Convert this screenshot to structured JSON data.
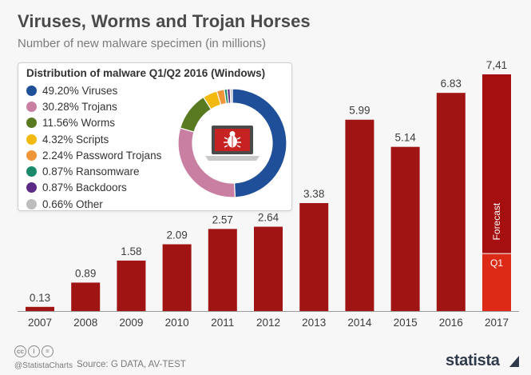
{
  "title": "Viruses, Worms and Trojan Horses",
  "subtitle": "Number of new malware specimen (in millions)",
  "chart_data": [
    {
      "type": "bar",
      "categories": [
        "2007",
        "2008",
        "2009",
        "2010",
        "2011",
        "2012",
        "2013",
        "2014",
        "2015",
        "2016",
        "2017"
      ],
      "values": [
        0.13,
        0.89,
        1.58,
        2.09,
        2.57,
        2.64,
        3.38,
        5.99,
        5.14,
        6.83,
        7.41
      ],
      "value_labels": [
        "0.13",
        "0.89",
        "1.58",
        "2.09",
        "2.57",
        "2.64",
        "3.38",
        "5.99",
        "5.14",
        "6.83",
        "7,41"
      ],
      "stacked_last": {
        "q1_value": 1.8,
        "q1_label": "Q1",
        "forecast_label": "Forecast"
      },
      "ylim": [
        0,
        7.41
      ],
      "colors": {
        "bar": "#a11414",
        "forecast": "#a50f0f",
        "q1": "#dd2a17"
      },
      "grid": false
    },
    {
      "type": "pie",
      "title": "Distribution of malware Q1/Q2 2016 (Windows)",
      "slices": [
        {
          "label": "49.20% Viruses",
          "value": 49.2,
          "color": "#1f4f99"
        },
        {
          "label": "30.28% Trojans",
          "value": 30.28,
          "color": "#c97fa1"
        },
        {
          "label": "11.56% Worms",
          "value": 11.56,
          "color": "#5a7a22"
        },
        {
          "label": "4.32% Scripts",
          "value": 4.32,
          "color": "#f2b90f"
        },
        {
          "label": "2.24% Password Trojans",
          "value": 2.24,
          "color": "#f0963a"
        },
        {
          "label": "0.87% Ransomware",
          "value": 0.87,
          "color": "#1b8a6b"
        },
        {
          "label": "0.87% Backdoors",
          "value": 0.87,
          "color": "#5b2a86"
        },
        {
          "label": "0.66% Other",
          "value": 0.66,
          "color": "#bdbdbd"
        }
      ],
      "legend_position": "left",
      "center_icon": "laptop-bug-icon"
    }
  ],
  "footer": {
    "handle": "@StatistaCharts",
    "source": "Source: G DATA, AV-TEST",
    "brand": "statista",
    "license_icons": [
      "cc-icon",
      "by-icon",
      "nd-icon"
    ],
    "license_glyphs": [
      "cc",
      "i",
      "="
    ]
  }
}
